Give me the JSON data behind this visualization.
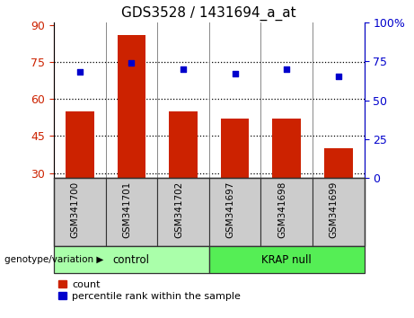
{
  "title": "GDS3528 / 1431694_a_at",
  "categories": [
    "GSM341700",
    "GSM341701",
    "GSM341702",
    "GSM341697",
    "GSM341698",
    "GSM341699"
  ],
  "bar_values": [
    55,
    86,
    55,
    52,
    52,
    40
  ],
  "scatter_values": [
    68,
    74,
    70,
    67,
    70,
    65
  ],
  "bar_color": "#cc2200",
  "scatter_color": "#0000cc",
  "ylim_left": [
    28,
    91
  ],
  "yticks_left": [
    30,
    45,
    60,
    75,
    90
  ],
  "ylim_right": [
    0,
    100
  ],
  "yticks_right": [
    0,
    25,
    50,
    75,
    100
  ],
  "yticklabels_right": [
    "0",
    "25",
    "50",
    "75",
    "100%"
  ],
  "groups": [
    {
      "label": "control",
      "indices": [
        0,
        1,
        2
      ],
      "color": "#aaffaa"
    },
    {
      "label": "KRAP null",
      "indices": [
        3,
        4,
        5
      ],
      "color": "#55ee55"
    }
  ],
  "legend_bar_label": "count",
  "legend_scatter_label": "percentile rank within the sample",
  "left_tick_color": "#cc2200",
  "right_tick_color": "#0000cc",
  "bar_bottom": 28,
  "cell_bg": "#cccccc",
  "cell_border": "#888888",
  "genotype_label": "genotype/variation ▶"
}
